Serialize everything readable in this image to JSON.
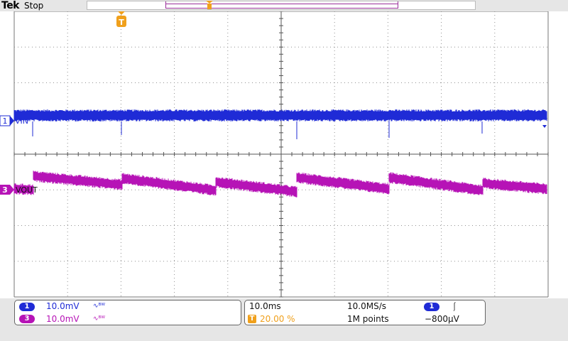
{
  "header": {
    "brand": "Tek",
    "status": "Stop"
  },
  "markers": {
    "trigger_glyph": "T"
  },
  "channels": [
    {
      "number": "1",
      "label": "VIN",
      "scale": "10.0mV",
      "bw_glyph": "∿ᴮᵂ",
      "color": "#1f2bd6"
    },
    {
      "number": "3",
      "label": "VOUT",
      "scale": "10.0mV",
      "bw_glyph": "∿ᴮᵂ",
      "color": "#b613b6"
    }
  ],
  "horizontal": {
    "time_per_div": "10.0ms",
    "sample_rate": "10.0MS/s",
    "trigger_position": "20.00 %",
    "record_length": "1M points"
  },
  "trigger": {
    "source_number": "1",
    "slope_glyph": "⎰",
    "level": "−800µV"
  },
  "colors": {
    "grid": "#909090",
    "ch1": "#1f2bd6",
    "ch3": "#b613b6",
    "trigger_marker": "#f0a01c",
    "record_window": "#9a2f9a"
  },
  "icons": [
    "trigger-position-icon",
    "channel-1-marker-icon",
    "channel-3-marker-icon",
    "slope-rising-icon"
  ]
}
